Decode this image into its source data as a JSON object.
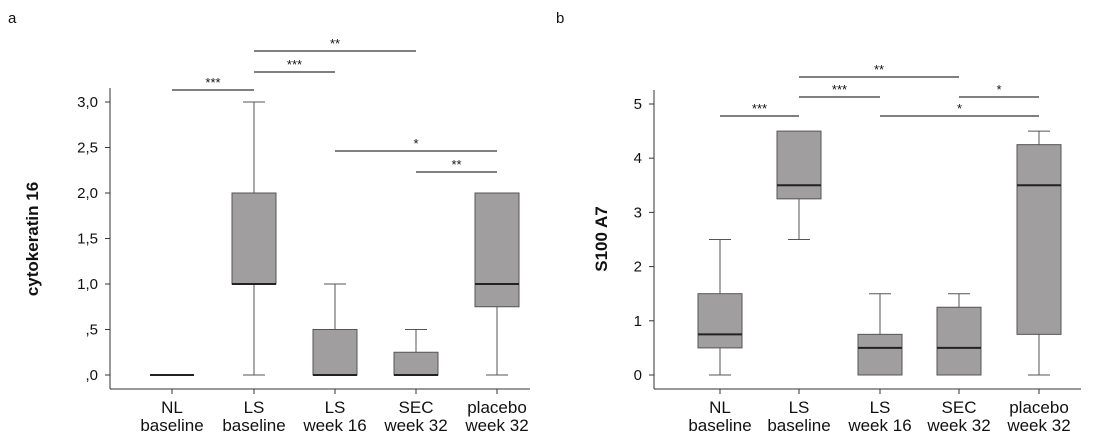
{
  "panels": [
    {
      "letter": "a"
    },
    {
      "letter": "b"
    }
  ],
  "colors": {
    "box_fill": "#a09e9e",
    "box_stroke": "#555555",
    "median": "#222222",
    "axis": "#333333",
    "text": "#111111"
  },
  "chart_data": [
    {
      "type": "box",
      "title": "",
      "ylabel": "cytokeratin 16",
      "ylim": [
        0,
        3.0
      ],
      "yticks": [
        0,
        0.5,
        1.0,
        1.5,
        2.0,
        2.5,
        3.0
      ],
      "ytick_labels": [
        ",0",
        ",5",
        "1,0",
        "1,5",
        "2,0",
        "2,5",
        "3,0"
      ],
      "categories": [
        [
          "NL",
          "baseline"
        ],
        [
          "LS",
          "baseline"
        ],
        [
          "LS",
          "week 16"
        ],
        [
          "SEC",
          "week 32"
        ],
        [
          "placebo",
          "week 32"
        ]
      ],
      "boxes": [
        {
          "whisker_low": 0,
          "q1": 0,
          "median": 0,
          "q3": 0,
          "whisker_high": 0
        },
        {
          "whisker_low": 0,
          "q1": 1.0,
          "median": 1.0,
          "q3": 2.0,
          "whisker_high": 3.0
        },
        {
          "whisker_low": 0,
          "q1": 0,
          "median": 0,
          "q3": 0.5,
          "whisker_high": 1.0
        },
        {
          "whisker_low": 0,
          "q1": 0,
          "median": 0,
          "q3": 0.25,
          "whisker_high": 0.5
        },
        {
          "whisker_low": 0,
          "q1": 0.75,
          "median": 1.0,
          "q3": 2.0,
          "whisker_high": 2.0
        }
      ],
      "significance": [
        {
          "from": 0,
          "to": 1,
          "label": "***"
        },
        {
          "from": 1,
          "to": 2,
          "label": "***"
        },
        {
          "from": 1,
          "to": 3,
          "label": "**"
        },
        {
          "from": 2,
          "to": 4,
          "label": "*"
        },
        {
          "from": 3,
          "to": 4,
          "label": "**"
        }
      ]
    },
    {
      "type": "box",
      "title": "",
      "ylabel": "S100 A7",
      "ylim": [
        0,
        5
      ],
      "yticks": [
        0,
        1,
        2,
        3,
        4,
        5
      ],
      "ytick_labels": [
        "0",
        "1",
        "2",
        "3",
        "4",
        "5"
      ],
      "categories": [
        [
          "NL",
          "baseline"
        ],
        [
          "LS",
          "baseline"
        ],
        [
          "LS",
          "week 16"
        ],
        [
          "SEC",
          "week 32"
        ],
        [
          "placebo",
          "week 32"
        ]
      ],
      "boxes": [
        {
          "whisker_low": 0,
          "q1": 0.5,
          "median": 0.75,
          "q3": 1.5,
          "whisker_high": 2.5
        },
        {
          "whisker_low": 2.5,
          "q1": 3.25,
          "median": 3.5,
          "q3": 4.5,
          "whisker_high": 4.5
        },
        {
          "whisker_low": 0,
          "q1": 0,
          "median": 0.5,
          "q3": 0.75,
          "whisker_high": 1.5
        },
        {
          "whisker_low": 0,
          "q1": 0,
          "median": 0.5,
          "q3": 1.25,
          "whisker_high": 1.5
        },
        {
          "whisker_low": 0,
          "q1": 0.75,
          "median": 3.5,
          "q3": 4.25,
          "whisker_high": 4.5
        }
      ],
      "significance": [
        {
          "from": 0,
          "to": 1,
          "label": "***"
        },
        {
          "from": 1,
          "to": 2,
          "label": "***"
        },
        {
          "from": 1,
          "to": 3,
          "label": "**"
        },
        {
          "from": 3,
          "to": 4,
          "label": "*"
        },
        {
          "from": 2,
          "to": 4,
          "label": "*"
        }
      ]
    }
  ]
}
